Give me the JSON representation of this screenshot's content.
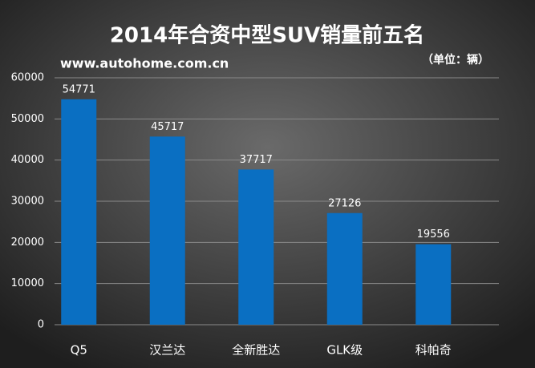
{
  "chart_data": {
    "type": "bar",
    "title": "2014年合资中型SUV销量前五名",
    "subtitle": "www.autohome.com.cn",
    "unit_note": "（单位：辆）",
    "categories": [
      "Q5",
      "汉兰达",
      "全新胜达",
      "GLK级",
      "科帕奇"
    ],
    "values": [
      54771,
      45717,
      37717,
      27126,
      19556
    ],
    "color": "#0a6fc2",
    "ylim": [
      0,
      60000
    ],
    "yticks": [
      0,
      10000,
      20000,
      30000,
      40000,
      50000,
      60000
    ],
    "grid": true
  }
}
